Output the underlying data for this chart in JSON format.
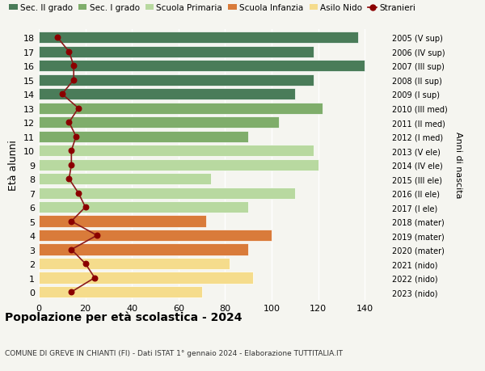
{
  "ages": [
    18,
    17,
    16,
    15,
    14,
    13,
    12,
    11,
    10,
    9,
    8,
    7,
    6,
    5,
    4,
    3,
    2,
    1,
    0
  ],
  "years": [
    "2005 (V sup)",
    "2006 (IV sup)",
    "2007 (III sup)",
    "2008 (II sup)",
    "2009 (I sup)",
    "2010 (III med)",
    "2011 (II med)",
    "2012 (I med)",
    "2013 (V ele)",
    "2014 (IV ele)",
    "2015 (III ele)",
    "2016 (II ele)",
    "2017 (I ele)",
    "2018 (mater)",
    "2019 (mater)",
    "2020 (mater)",
    "2021 (nido)",
    "2022 (nido)",
    "2023 (nido)"
  ],
  "values": [
    137,
    118,
    140,
    118,
    110,
    122,
    103,
    90,
    118,
    120,
    74,
    110,
    90,
    72,
    100,
    90,
    82,
    92,
    70
  ],
  "stranieri": [
    8,
    13,
    15,
    15,
    10,
    17,
    13,
    16,
    14,
    14,
    13,
    17,
    20,
    14,
    25,
    14,
    20,
    24,
    14
  ],
  "bar_colors": [
    "#4a7c59",
    "#4a7c59",
    "#4a7c59",
    "#4a7c59",
    "#4a7c59",
    "#7fad6b",
    "#7fad6b",
    "#7fad6b",
    "#b8d9a0",
    "#b8d9a0",
    "#b8d9a0",
    "#b8d9a0",
    "#b8d9a0",
    "#d97b3a",
    "#d97b3a",
    "#d97b3a",
    "#f5dc8c",
    "#f5dc8c",
    "#f5dc8c"
  ],
  "legend_labels": [
    "Sec. II grado",
    "Sec. I grado",
    "Scuola Primaria",
    "Scuola Infanzia",
    "Asilo Nido",
    "Stranieri"
  ],
  "legend_colors": [
    "#4a7c59",
    "#7fad6b",
    "#b8d9a0",
    "#d97b3a",
    "#f5dc8c",
    "#8b0000"
  ],
  "ylabel_left": "Età alunni",
  "ylabel_right": "Anni di nascita",
  "title": "Popolazione per età scolastica - 2024",
  "subtitle": "COMUNE DI GREVE IN CHIANTI (FI) - Dati ISTAT 1° gennaio 2024 - Elaborazione TUTTITALIA.IT",
  "xlim": [
    0,
    150
  ],
  "xticks": [
    0,
    20,
    40,
    60,
    80,
    100,
    120,
    140
  ],
  "stranieri_color": "#8b0000",
  "stranieri_line_color": "#8b1a1a",
  "bg_color": "#f5f5f0",
  "bar_height": 0.82
}
